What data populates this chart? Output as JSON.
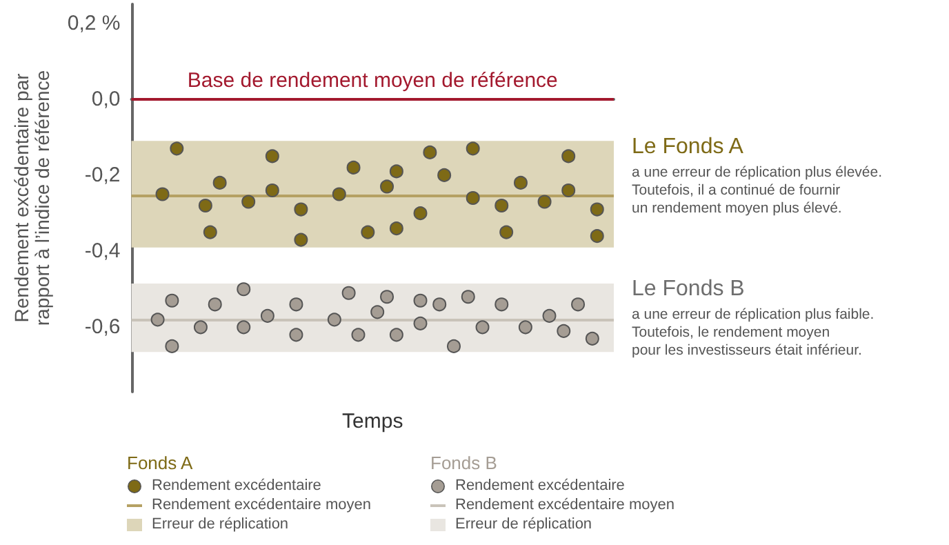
{
  "chart_data": {
    "type": "scatter",
    "ylabel": "Rendement excédentaire par\nrapport à l’indice de référence",
    "xlabel": "Temps",
    "categories": [
      null,
      null,
      null,
      null,
      null,
      null,
      null,
      null,
      null,
      null,
      null,
      null,
      null,
      null,
      null,
      null,
      null,
      null,
      null,
      null,
      null,
      null,
      null,
      null,
      null,
      null,
      null,
      null,
      null,
      null,
      null,
      null,
      null,
      null,
      null,
      null,
      null,
      null,
      null,
      null,
      null,
      null,
      null,
      null,
      null,
      null,
      null,
      null,
      null,
      null,
      null,
      null,
      null,
      null,
      null,
      null,
      null,
      null,
      null,
      null,
      null,
      null,
      null,
      null,
      null,
      null,
      null,
      null,
      null,
      null,
      null,
      null,
      null,
      null,
      null,
      null,
      null,
      null,
      null,
      null,
      null,
      null,
      null,
      null,
      null,
      null,
      null,
      null,
      null,
      null,
      null,
      null,
      null,
      null,
      null,
      null,
      null,
      null,
      null,
      null,
      null
    ],
    "ylim": [
      -0.77,
      0.25
    ],
    "yticks": [
      {
        "value": 0.2,
        "label": "0,2 %"
      },
      {
        "value": 0,
        "label": "0,0"
      },
      {
        "value": -0.2,
        "label": "-0,2"
      },
      {
        "value": -0.4,
        "label": "-0,4"
      },
      {
        "value": -0.6,
        "label": "-0,6"
      }
    ],
    "tick_labels": "y",
    "legend": "bottom",
    "marker": "circle",
    "series": [
      {
        "name": "Rendement excédentaire",
        "color": "#7e6a16",
        "values": [
          null,
          null,
          null,
          null,
          null,
          null,
          -0.25,
          null,
          null,
          -0.13,
          null,
          null,
          null,
          null,
          null,
          -0.28,
          -0.35,
          null,
          -0.22,
          null,
          null,
          null,
          null,
          null,
          -0.27,
          null,
          null,
          null,
          null,
          -0.15,
          null,
          null,
          null,
          null,
          null,
          -0.29,
          null,
          null,
          null,
          null,
          null,
          null,
          null,
          -0.25,
          null,
          null,
          -0.18,
          null,
          null,
          -0.35,
          null,
          null,
          null,
          -0.23,
          null,
          -0.19,
          null,
          null,
          null,
          null,
          -0.3,
          null,
          -0.14,
          null,
          null,
          -0.2,
          null,
          null,
          null,
          null,
          null,
          -0.13,
          null,
          null,
          null,
          null,
          null,
          -0.28,
          -0.35,
          null,
          null,
          -0.22,
          null,
          null,
          null,
          null,
          -0.27,
          null,
          null,
          null,
          null,
          -0.15,
          null,
          null,
          null,
          null,
          null,
          -0.29,
          null,
          null,
          null
        ]
      },
      {
        "color": "#7e6a16",
        "values": [
          null,
          null,
          null,
          null,
          null,
          null,
          null,
          null,
          null,
          null,
          null,
          null,
          null,
          null,
          null,
          null,
          null,
          null,
          null,
          null,
          null,
          null,
          null,
          null,
          null,
          null,
          null,
          null,
          null,
          -0.24,
          null,
          null,
          null,
          null,
          null,
          -0.37,
          null,
          null,
          null,
          null,
          null,
          null,
          null,
          null,
          null,
          null,
          null,
          null,
          null,
          null,
          null,
          null,
          null,
          null,
          null,
          -0.34,
          null,
          null,
          null,
          null,
          null,
          null,
          null,
          null,
          null,
          null,
          null,
          null,
          null,
          null,
          null,
          -0.26,
          null,
          null,
          null,
          null,
          null,
          null,
          null,
          null,
          null,
          null,
          null,
          null,
          null,
          null,
          null,
          null,
          null,
          null,
          null,
          -0.24,
          null,
          null,
          null,
          null,
          null,
          -0.36,
          null,
          null,
          null
        ]
      },
      {
        "name": "Rendement excédentaire",
        "color": "#a59d94",
        "values": [
          null,
          null,
          null,
          null,
          null,
          -0.58,
          null,
          null,
          -0.65,
          null,
          null,
          null,
          null,
          null,
          -0.6,
          null,
          null,
          -0.54,
          null,
          null,
          null,
          null,
          null,
          -0.5,
          null,
          null,
          null,
          null,
          -0.57,
          null,
          null,
          null,
          null,
          null,
          -0.54,
          null,
          null,
          null,
          null,
          null,
          null,
          null,
          -0.58,
          null,
          null,
          -0.51,
          null,
          -0.62,
          null,
          null,
          null,
          -0.56,
          null,
          -0.52,
          null,
          -0.62,
          null,
          null,
          null,
          null,
          -0.53,
          null,
          null,
          null,
          -0.54,
          null,
          null,
          -0.65,
          null,
          null,
          -0.52,
          null,
          null,
          -0.6,
          null,
          null,
          null,
          -0.54,
          null,
          null,
          null,
          null,
          -0.6,
          null,
          null,
          null,
          null,
          -0.57,
          null,
          null,
          -0.61,
          null,
          null,
          -0.54,
          null,
          null,
          -0.63,
          null,
          null,
          null,
          null
        ]
      },
      {
        "color": "#a59d94",
        "values": [
          null,
          null,
          null,
          null,
          null,
          null,
          null,
          null,
          -0.53,
          null,
          null,
          null,
          null,
          null,
          null,
          null,
          null,
          null,
          null,
          null,
          null,
          null,
          null,
          -0.6,
          null,
          null,
          null,
          null,
          null,
          null,
          null,
          null,
          null,
          null,
          -0.62,
          null,
          null,
          null,
          null,
          null,
          null,
          null,
          null,
          null,
          null,
          null,
          null,
          null,
          null,
          null,
          null,
          null,
          null,
          null,
          null,
          null,
          null,
          null,
          null,
          null,
          -0.59,
          null,
          null,
          null,
          null,
          null,
          null,
          null,
          null,
          null,
          null,
          null,
          null,
          null,
          null,
          null,
          null,
          null,
          null,
          null,
          null,
          null,
          null,
          null,
          null,
          null,
          null,
          null,
          null,
          null,
          null,
          null,
          null,
          null,
          null,
          null,
          null,
          null,
          null,
          null,
          null
        ]
      }
    ],
    "ref_lines": [
      {
        "axis": "y",
        "value": 0,
        "label": "Base de rendement moyen de référence",
        "color": "#a3192e"
      },
      {
        "axis": "y",
        "value": -0.255,
        "label": "Rendement excédentaire moyen",
        "color": "#b5a163"
      },
      {
        "axis": "y",
        "value": -0.58,
        "label": "Rendement excédentaire moyen",
        "color": "#c9c3b9"
      }
    ],
    "bands": [
      {
        "axis": "y",
        "from": -0.39,
        "to": -0.11,
        "label": "Erreur de réplication",
        "color": "#ddd6b9"
      },
      {
        "axis": "y",
        "from": -0.665,
        "to": -0.485,
        "label": "Erreur de réplication",
        "color": "#e9e6e1"
      }
    ],
    "annotations": [
      "Le Fonds A",
      "a une erreur de réplication plus élevée.\nToutefois, il a continué de fournir\nun rendement moyen plus élevé.",
      "Le Fonds B",
      "a une erreur de réplication plus faible.\nToutefois, le rendement moyen\npour les investisseurs était inférieur.",
      "Fonds A",
      "Fonds B"
    ]
  }
}
